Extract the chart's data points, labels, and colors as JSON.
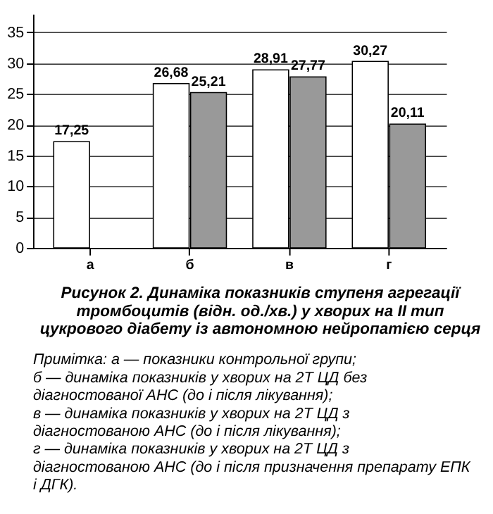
{
  "chart_data": {
    "type": "bar",
    "title": "Рисунок 2. Динаміка показників ступеня агрегації тромбоцитів (відн. од./хв.) у хворих на II тип цукрового діабету із автономною нейропатією серця",
    "categories": [
      "а",
      "б",
      "в",
      "г"
    ],
    "series": [
      {
        "color": "#ffffff",
        "values": [
          17.25,
          26.68,
          28.91,
          30.27
        ],
        "value_labels": [
          "17,25",
          "26,68",
          "28,91",
          "30,27"
        ]
      },
      {
        "color": "#999999",
        "values": [
          null,
          25.21,
          27.77,
          20.11
        ],
        "value_labels": [
          null,
          "25,21",
          "27,77",
          "20,11"
        ]
      }
    ],
    "ylim": [
      0,
      38
    ],
    "yticks": [
      0,
      5,
      10,
      15,
      20,
      25,
      30,
      35
    ],
    "grid": "y",
    "annotations": [
      "Примітка: а — показники контрольної групи;",
      "б — динаміка показників у хворих на 2Т ЦД без діагностованої АНС (до і після лікування);",
      "в — динаміка показників у хворих на 2Т ЦД з діагностованою АНС (до і після лікування);",
      "г — динаміка показників у хворих на 2Т ЦД з діагностованою АНС (до і після призначення препарату ЕПК і ДГК)."
    ]
  }
}
